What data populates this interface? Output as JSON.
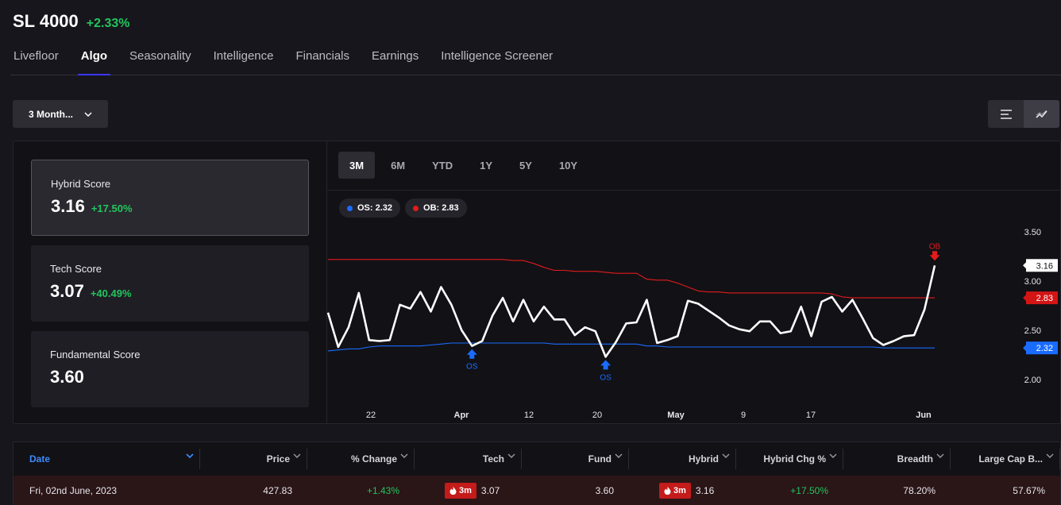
{
  "header": {
    "ticker": "SL 4000",
    "change": "+2.33%"
  },
  "tabs": [
    "Livefloor",
    "Algo",
    "Seasonality",
    "Intelligence",
    "Financials",
    "Earnings",
    "Intelligence Screener"
  ],
  "active_tab": "Algo",
  "period_select": {
    "label": "3 Month..."
  },
  "view_toggle": {
    "icons": [
      "list-icon",
      "chart-line-icon"
    ],
    "active": "chart-line-icon"
  },
  "scores": [
    {
      "label": "Hybrid Score",
      "value": "3.16",
      "change": "+17.50%"
    },
    {
      "label": "Tech Score",
      "value": "3.07",
      "change": "+40.49%"
    },
    {
      "label": "Fundamental Score",
      "value": "3.60",
      "change": ""
    }
  ],
  "range_tabs": [
    "3M",
    "6M",
    "YTD",
    "1Y",
    "5Y",
    "10Y"
  ],
  "active_range": "3M",
  "pills": {
    "os": "OS: 2.32",
    "ob": "OB: 2.83"
  },
  "colors": {
    "green": "#22c55e",
    "os_blue": "#1a6cff",
    "ob_red": "#e31b1b",
    "active_tab_underline": "#3b36ff",
    "date_header": "#3b8cff"
  },
  "chart_data": {
    "type": "line",
    "x_labels": [
      "22",
      "Apr",
      "12",
      "20",
      "May",
      "9",
      "17",
      "Jun"
    ],
    "y_ticks": [
      "3.50",
      "3.00",
      "2.50",
      "2.00"
    ],
    "ylim": [
      1.95,
      3.55
    ],
    "series": [
      {
        "values": [
          2.68,
          2.33,
          2.53,
          2.88,
          2.4,
          2.39,
          2.4,
          2.76,
          2.72,
          2.89,
          2.69,
          2.94,
          2.76,
          2.5,
          2.34,
          2.39,
          2.65,
          2.83,
          2.59,
          2.81,
          2.59,
          2.74,
          2.61,
          2.61,
          2.45,
          2.53,
          2.49,
          2.23,
          2.38,
          2.57,
          2.58,
          2.81,
          2.37,
          2.4,
          2.44,
          2.8,
          2.77,
          2.7,
          2.63,
          2.55,
          2.51,
          2.49,
          2.59,
          2.59,
          2.47,
          2.49,
          2.74,
          2.44,
          2.79,
          2.84,
          2.69,
          2.81,
          2.62,
          2.42,
          2.35,
          2.39,
          2.44,
          2.45,
          2.71,
          3.16
        ]
      },
      {
        "name": "OB",
        "values": [
          3.22,
          3.22,
          3.22,
          3.22,
          3.22,
          3.22,
          3.22,
          3.22,
          3.22,
          3.22,
          3.22,
          3.22,
          3.22,
          3.22,
          3.22,
          3.22,
          3.22,
          3.22,
          3.21,
          3.21,
          3.18,
          3.14,
          3.11,
          3.11,
          3.1,
          3.1,
          3.1,
          3.09,
          3.08,
          3.08,
          3.08,
          3.02,
          3.01,
          3.01,
          2.98,
          2.94,
          2.9,
          2.89,
          2.89,
          2.88,
          2.88,
          2.88,
          2.88,
          2.88,
          2.88,
          2.88,
          2.88,
          2.88,
          2.88,
          2.87,
          2.84,
          2.83,
          2.83,
          2.83,
          2.83,
          2.83,
          2.83,
          2.83,
          2.83,
          2.83
        ]
      },
      {
        "name": "OS",
        "values": [
          2.29,
          2.3,
          2.31,
          2.31,
          2.33,
          2.34,
          2.34,
          2.34,
          2.34,
          2.34,
          2.35,
          2.36,
          2.37,
          2.37,
          2.37,
          2.37,
          2.37,
          2.37,
          2.37,
          2.37,
          2.37,
          2.37,
          2.36,
          2.36,
          2.36,
          2.36,
          2.36,
          2.36,
          2.36,
          2.36,
          2.36,
          2.34,
          2.34,
          2.33,
          2.33,
          2.33,
          2.33,
          2.33,
          2.33,
          2.33,
          2.33,
          2.33,
          2.33,
          2.33,
          2.33,
          2.33,
          2.33,
          2.33,
          2.33,
          2.33,
          2.33,
          2.33,
          2.33,
          2.33,
          2.32,
          2.32,
          2.32,
          2.32,
          2.32,
          2.32
        ]
      }
    ],
    "markers": [
      {
        "label": "OS",
        "index": 14
      },
      {
        "label": "OS",
        "index": 27
      },
      {
        "label": "OB",
        "index": 59
      }
    ],
    "price_tags": [
      {
        "text": "3.16",
        "value": 3.16
      },
      {
        "text": "2.83",
        "value": 2.83
      },
      {
        "text": "2.32",
        "value": 2.32
      }
    ]
  },
  "table": {
    "headers": [
      "Date",
      "Price",
      "% Change",
      "Tech",
      "Fund",
      "Hybrid",
      "Hybrid Chg %",
      "Breadth",
      "Large Cap B..."
    ],
    "row": {
      "date": "Fri, 02nd June, 2023",
      "price": "427.83",
      "change": "+1.43%",
      "tech_badge": "3m",
      "tech": "3.07",
      "fund": "3.60",
      "hybrid_badge": "3m",
      "hybrid": "3.16",
      "hybrid_chg": "+17.50%",
      "breadth": "78.20%",
      "large_cap": "57.67%"
    }
  }
}
